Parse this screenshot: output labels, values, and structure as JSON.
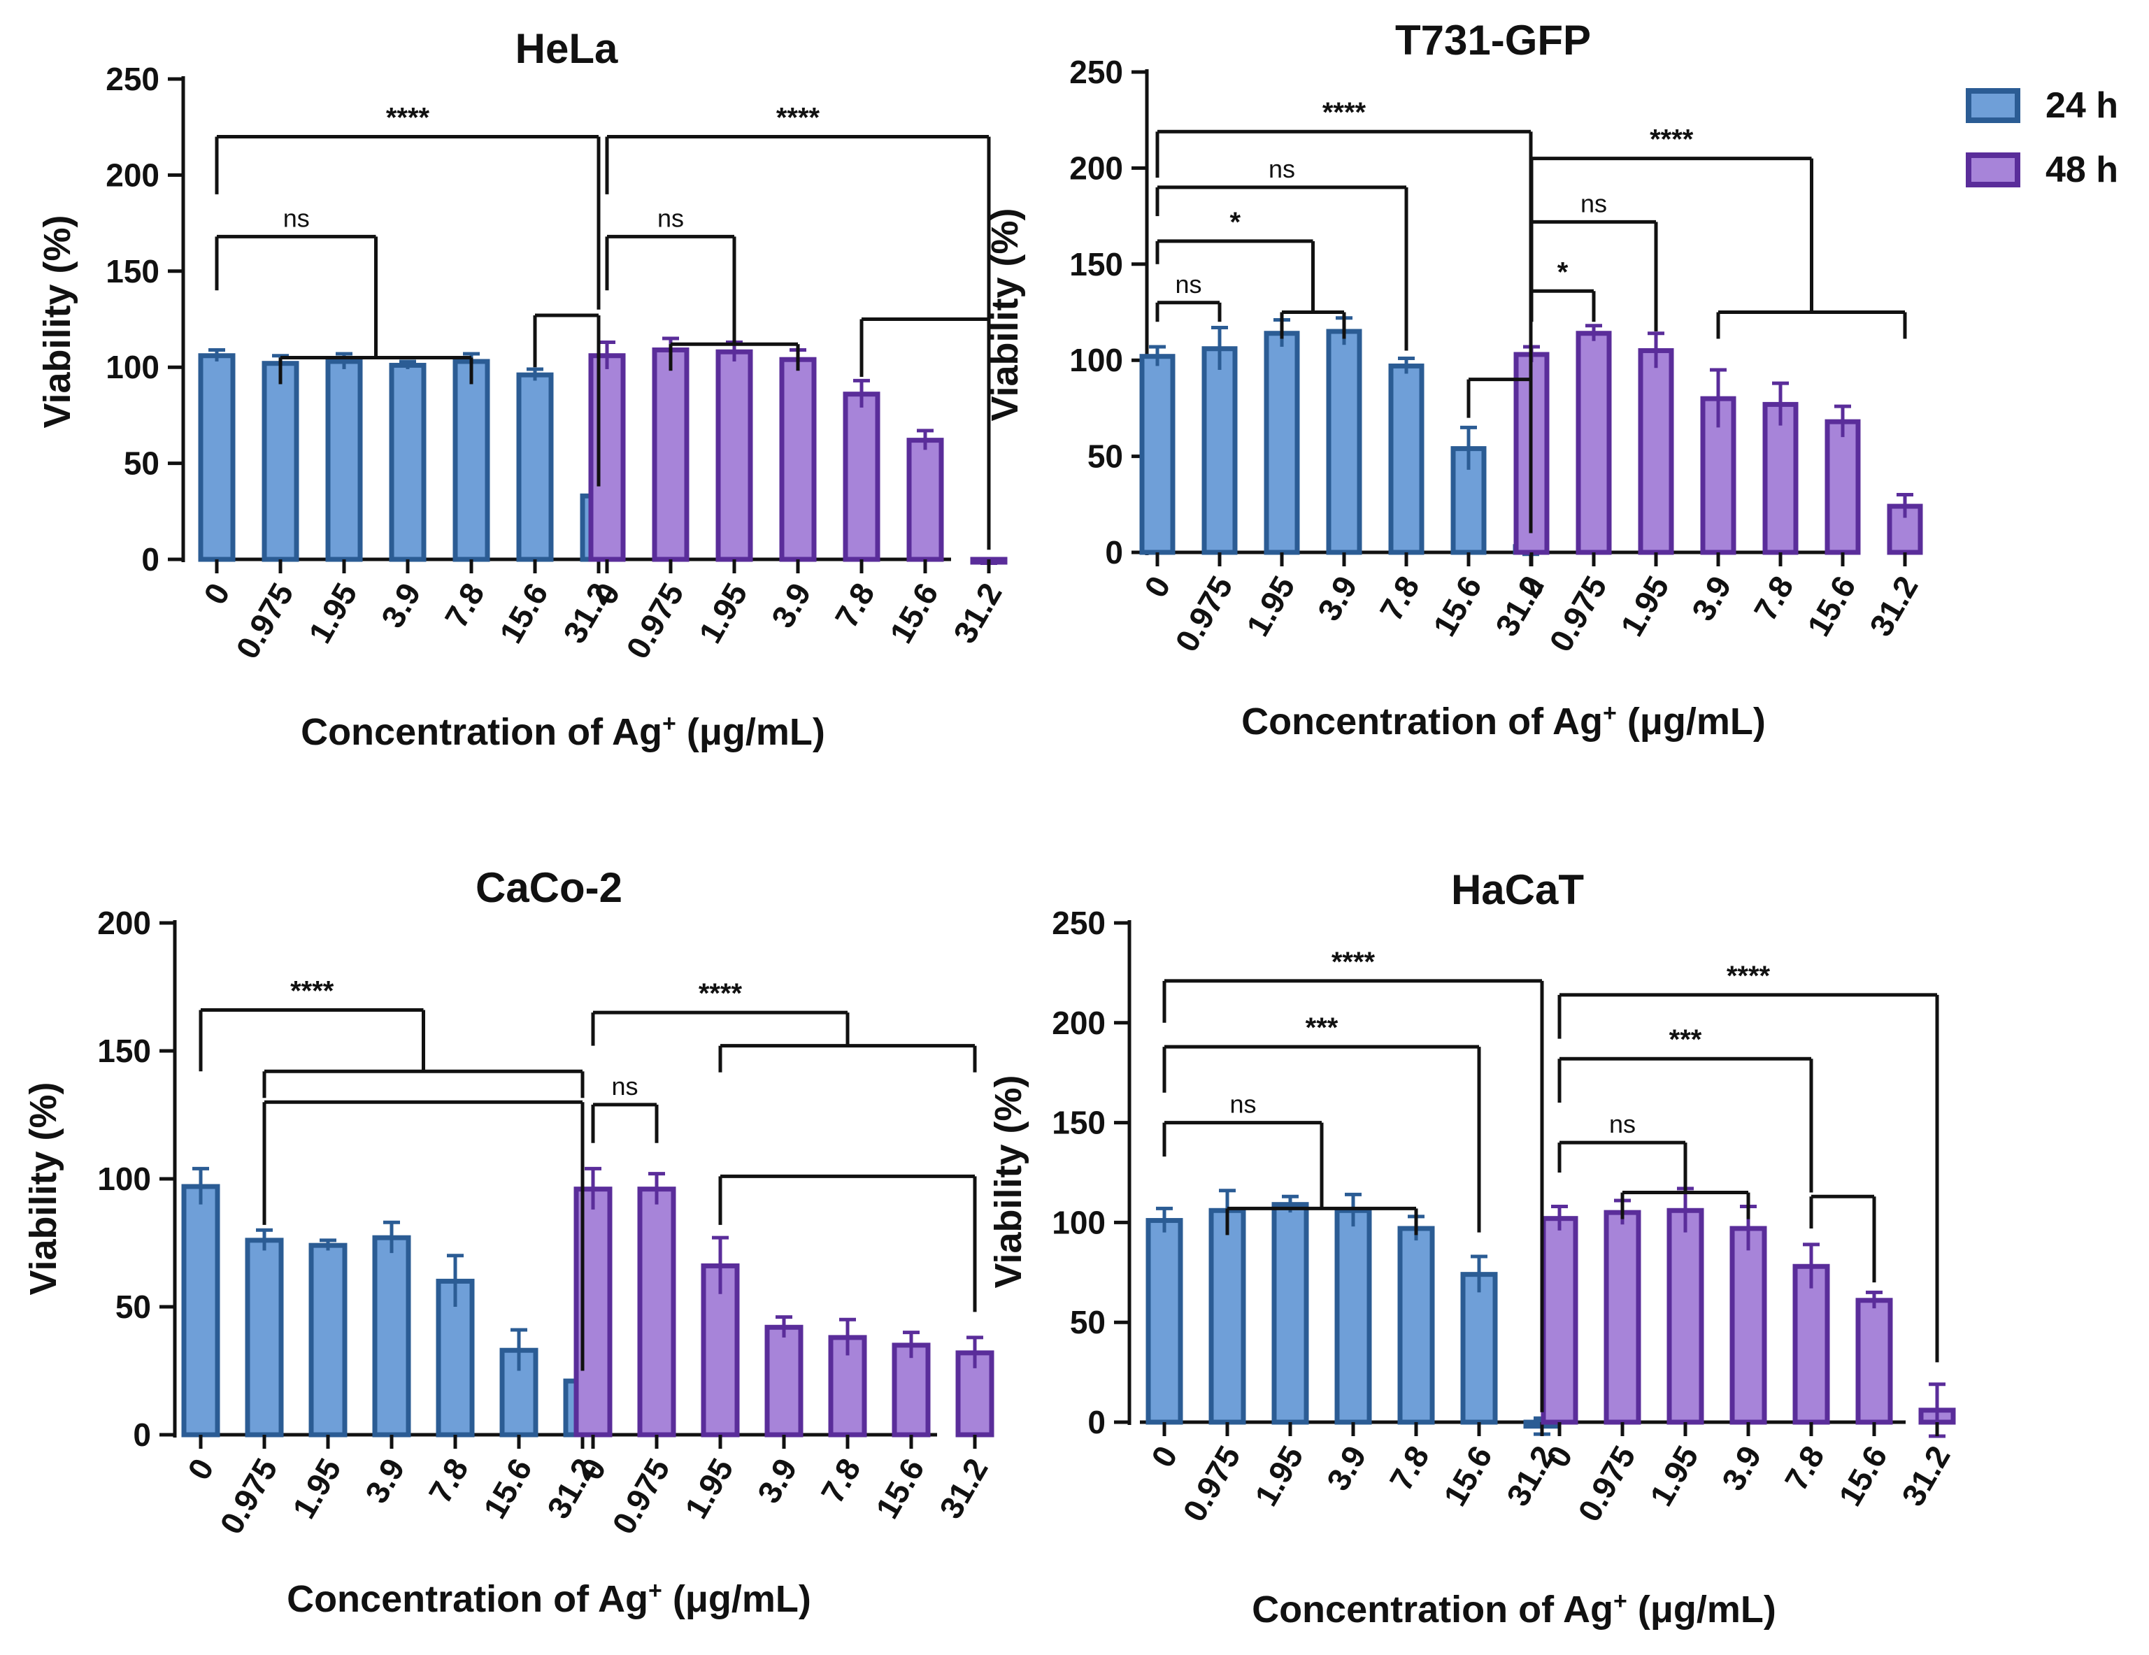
{
  "colors": {
    "24h_fill": "#6f9fd8",
    "24h_stroke": "#2b5c94",
    "48h_fill": "#a784d9",
    "48h_stroke": "#5a2d9a"
  },
  "legend": [
    {
      "name": "24 h",
      "key": "24h"
    },
    {
      "name": "48 h",
      "key": "48h"
    }
  ],
  "chart_data": [
    {
      "type": "bar",
      "title": "HeLa",
      "ylabel": "Viability (%)",
      "xlabel_main": "Concentration of Ag",
      "xlabel_sup": "+",
      "xlabel_unit": " (μg/mL)",
      "ylim": [
        0,
        250
      ],
      "yticks": [
        "0",
        "50",
        "100",
        "150",
        "200",
        "250"
      ],
      "categories": [
        "0",
        "0.975",
        "1.95",
        "3.9",
        "7.8",
        "15.6",
        "31.2"
      ],
      "series": [
        {
          "name": "24 h",
          "values": [
            106,
            102,
            103,
            101,
            103,
            96,
            33
          ],
          "errors": [
            3,
            4,
            4,
            2,
            4,
            3,
            3
          ]
        },
        {
          "name": "48 h",
          "values": [
            106,
            109,
            108,
            104,
            86,
            62,
            -1
          ],
          "errors": [
            7,
            6,
            5,
            5,
            7,
            5,
            1
          ]
        }
      ],
      "annotations": [
        {
          "label": "****",
          "series": 0,
          "from": [
            0
          ],
          "to": [
            6
          ],
          "level": 220,
          "drop_from": 190,
          "drop_to": 130
        },
        {
          "label": "ns",
          "series": 0,
          "from": [
            0
          ],
          "to": [
            1,
            4
          ],
          "level": 168,
          "drop_from": 140,
          "drop_to": 105
        },
        {
          "label": "",
          "series": 0,
          "from": [
            5
          ],
          "to": [
            6
          ],
          "level": 127,
          "drop_from": 100,
          "drop_to": 38
        },
        {
          "label": "****",
          "series": 1,
          "from": [
            0
          ],
          "to": [
            6
          ],
          "level": 220,
          "drop_from": 190,
          "drop_to": 125
        },
        {
          "label": "ns",
          "series": 1,
          "from": [
            0
          ],
          "to": [
            1,
            3
          ],
          "level": 168,
          "drop_from": 140,
          "drop_to": 112
        },
        {
          "label": "",
          "series": 1,
          "from": [
            4
          ],
          "to": [
            6
          ],
          "level": 125,
          "drop_from": 95,
          "drop_to": 5
        }
      ]
    },
    {
      "type": "bar",
      "title": "T731-GFP",
      "ylabel": "Viability (%)",
      "xlabel_main": "Concentration of Ag",
      "xlabel_sup": "+",
      "xlabel_unit": " (μg/mL)",
      "ylim": [
        0,
        250
      ],
      "yticks": [
        "0",
        "50",
        "100",
        "150",
        "200",
        "250"
      ],
      "categories": [
        "0",
        "0.975",
        "1.95",
        "3.9",
        "7.8",
        "15.6",
        "31.2"
      ],
      "series": [
        {
          "name": "24 h",
          "values": [
            102,
            106,
            114,
            115,
            97,
            54,
            3
          ],
          "errors": [
            5,
            11,
            7,
            7,
            4,
            11,
            4
          ]
        },
        {
          "name": "48 h",
          "values": [
            103,
            114,
            105,
            80,
            77,
            68,
            24
          ],
          "errors": [
            4,
            4,
            9,
            15,
            11,
            8,
            6
          ]
        }
      ],
      "annotations": [
        {
          "label": "****",
          "series": 0,
          "from": [
            0
          ],
          "to": [
            6
          ],
          "level": 219,
          "drop_from": 195,
          "drop_to": 10
        },
        {
          "label": "ns",
          "series": 0,
          "from": [
            0
          ],
          "to": [
            4
          ],
          "level": 190,
          "drop_from": 175,
          "drop_to": 105
        },
        {
          "label": "*",
          "series": 0,
          "from": [
            0
          ],
          "to": [
            2,
            3
          ],
          "level": 162,
          "drop_from": 150,
          "drop_to": 125
        },
        {
          "label": "ns",
          "series": 0,
          "from": [
            0
          ],
          "to": [
            1
          ],
          "level": 130,
          "drop_from": 120,
          "drop_to": 120
        },
        {
          "label": "",
          "series": 0,
          "from": [
            5
          ],
          "to": [
            6
          ],
          "level": 90,
          "drop_from": 70,
          "drop_to": 10
        },
        {
          "label": "****",
          "series": 1,
          "from": [
            0
          ],
          "to": [
            3,
            6
          ],
          "level": 205,
          "drop_from": 125,
          "drop_to": 125
        },
        {
          "label": "ns",
          "series": 1,
          "from": [
            0
          ],
          "to": [
            2
          ],
          "level": 172,
          "drop_from": 155,
          "drop_to": 115
        },
        {
          "label": "*",
          "series": 1,
          "from": [
            0
          ],
          "to": [
            1
          ],
          "level": 136,
          "drop_from": 120,
          "drop_to": 120
        }
      ]
    },
    {
      "type": "bar",
      "title": "CaCo-2",
      "ylabel": "Viability (%)",
      "xlabel_main": "Concentration of Ag",
      "xlabel_sup": "+",
      "xlabel_unit": " (μg/mL)",
      "ylim": [
        0,
        200
      ],
      "yticks": [
        "0",
        "50",
        "100",
        "150",
        "200"
      ],
      "categories": [
        "0",
        "0.975",
        "1.95",
        "3.9",
        "7.8",
        "15.6",
        "31.2"
      ],
      "series": [
        {
          "name": "24 h",
          "values": [
            97,
            76,
            74,
            77,
            60,
            33,
            21
          ],
          "errors": [
            7,
            4,
            2,
            6,
            10,
            8,
            2
          ]
        },
        {
          "name": "48 h",
          "values": [
            96,
            96,
            66,
            42,
            38,
            35,
            32
          ],
          "errors": [
            8,
            6,
            11,
            4,
            7,
            5,
            6
          ]
        }
      ],
      "annotations": [
        {
          "label": "****",
          "series": 0,
          "from": [
            0
          ],
          "to": [
            1,
            6
          ],
          "level": 166,
          "drop_from": 142,
          "drop_to": 142
        },
        {
          "label": "",
          "series": 0,
          "from": [
            1
          ],
          "to": [
            6
          ],
          "level": 130,
          "drop_from": 82,
          "drop_to": 25
        },
        {
          "label": "****",
          "series": 1,
          "from": [
            0
          ],
          "to": [
            2,
            6
          ],
          "level": 165,
          "drop_from": 152,
          "drop_to": 152
        },
        {
          "label": "ns",
          "series": 1,
          "from": [
            0
          ],
          "to": [
            1
          ],
          "level": 129,
          "drop_from": 114,
          "drop_to": 114
        },
        {
          "label": "",
          "series": 1,
          "from": [
            2
          ],
          "to": [
            6
          ],
          "level": 101,
          "drop_from": 82,
          "drop_to": 48
        }
      ]
    },
    {
      "type": "bar",
      "title": "HaCaT",
      "ylabel": "Viability (%)",
      "xlabel_main": "Concentration of Ag",
      "xlabel_sup": "+",
      "xlabel_unit": " (μg/mL)",
      "ylim": [
        0,
        250
      ],
      "yticks": [
        "0",
        "50",
        "100",
        "150",
        "200",
        "250"
      ],
      "categories": [
        "0",
        "0.975",
        "1.95",
        "3.9",
        "7.8",
        "15.6",
        "31.2"
      ],
      "series": [
        {
          "name": "24 h",
          "values": [
            101,
            106,
            109,
            106,
            97,
            74,
            -2
          ],
          "errors": [
            6,
            10,
            4,
            8,
            6,
            9,
            4
          ]
        },
        {
          "name": "48 h",
          "values": [
            102,
            105,
            106,
            97,
            78,
            61,
            6
          ],
          "errors": [
            6,
            6,
            11,
            11,
            11,
            4,
            13
          ]
        }
      ],
      "annotations": [
        {
          "label": "****",
          "series": 0,
          "from": [
            0
          ],
          "to": [
            6
          ],
          "level": 221,
          "drop_from": 200,
          "drop_to": 5
        },
        {
          "label": "***",
          "series": 0,
          "from": [
            0
          ],
          "to": [
            5
          ],
          "level": 188,
          "drop_from": 165,
          "drop_to": 95
        },
        {
          "label": "ns",
          "series": 0,
          "from": [
            0
          ],
          "to": [
            1,
            4
          ],
          "level": 150,
          "drop_from": 133,
          "drop_to": 107
        },
        {
          "label": "****",
          "series": 1,
          "from": [
            0
          ],
          "to": [
            6
          ],
          "level": 214,
          "drop_from": 192,
          "drop_to": 30
        },
        {
          "label": "***",
          "series": 1,
          "from": [
            0
          ],
          "to": [
            4
          ],
          "level": 182,
          "drop_from": 160,
          "drop_to": 115
        },
        {
          "label": "ns",
          "series": 1,
          "from": [
            0
          ],
          "to": [
            1,
            3
          ],
          "level": 140,
          "drop_from": 125,
          "drop_to": 115
        },
        {
          "label": "",
          "series": 1,
          "from": [
            4
          ],
          "to": [
            5
          ],
          "level": 113,
          "drop_from": 97,
          "drop_to": 70
        }
      ]
    }
  ]
}
